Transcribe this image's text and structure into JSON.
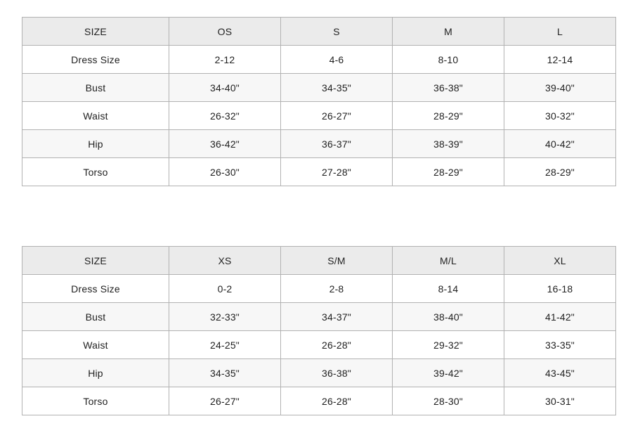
{
  "colors": {
    "header_bg": "#ebebeb",
    "stripe_bg": "#f7f7f7",
    "row_bg": "#ffffff",
    "border": "#b2b2b2",
    "text": "#1f1f1f"
  },
  "tables": [
    {
      "name": "one-size-chart",
      "headers": [
        "SIZE",
        "OS",
        "S",
        "M",
        "L"
      ],
      "rows": [
        {
          "label": "Dress Size",
          "values": [
            "2-12",
            "4-6",
            "8-10",
            "12-14"
          ]
        },
        {
          "label": "Bust",
          "values": [
            "34-40\"",
            "34-35\"",
            "36-38\"",
            "39-40\""
          ]
        },
        {
          "label": "Waist",
          "values": [
            "26-32\"",
            "26-27\"",
            "28-29\"",
            "30-32\""
          ]
        },
        {
          "label": "Hip",
          "values": [
            "36-42\"",
            "36-37\"",
            "38-39\"",
            "40-42\""
          ]
        },
        {
          "label": "Torso",
          "values": [
            "26-30\"",
            "27-28\"",
            "28-29\"",
            "28-29\""
          ]
        }
      ]
    },
    {
      "name": "standard-size-chart",
      "headers": [
        "SIZE",
        "XS",
        "S/M",
        "M/L",
        "XL"
      ],
      "rows": [
        {
          "label": "Dress Size",
          "values": [
            "0-2",
            "2-8",
            "8-14",
            "16-18"
          ]
        },
        {
          "label": "Bust",
          "values": [
            "32-33\"",
            "34-37\"",
            "38-40\"",
            "41-42\""
          ]
        },
        {
          "label": "Waist",
          "values": [
            "24-25\"",
            "26-28\"",
            "29-32\"",
            "33-35\""
          ]
        },
        {
          "label": "Hip",
          "values": [
            "34-35\"",
            "36-38\"",
            "39-42\"",
            "43-45\""
          ]
        },
        {
          "label": "Torso",
          "values": [
            "26-27\"",
            "26-28\"",
            "28-30\"",
            "30-31\""
          ]
        }
      ]
    }
  ]
}
